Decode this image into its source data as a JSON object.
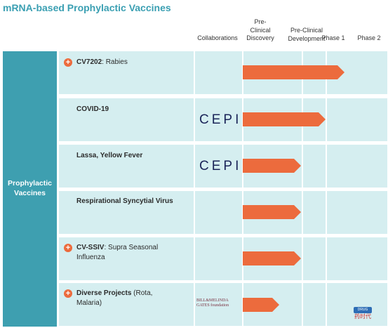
{
  "title": "mRNA-based Prophylactic Vaccines",
  "columns": [
    {
      "key": "collaborations",
      "label": "Collaborations"
    },
    {
      "key": "preclinical_discovery",
      "label": "Pre-\nClinical\nDiscovery"
    },
    {
      "key": "preclinical_development",
      "label": "Pre-Clinical\nDevelopment"
    },
    {
      "key": "phase1",
      "label": "Phase 1"
    },
    {
      "key": "phase2",
      "label": "Phase 2"
    }
  ],
  "category": "Prophylactic\nVaccines",
  "accent_color": "#ec6b3d",
  "programs": [
    {
      "code": "CV7202",
      "separator": ": ",
      "name": "Rabies",
      "plus": true,
      "collaboration": "",
      "stage_reached": "phase1"
    },
    {
      "code": "COVID-19",
      "separator": "",
      "name": "",
      "plus": false,
      "collaboration": "CEPI",
      "stage_reached": "phase1_partial"
    },
    {
      "code": "Lassa, Yellow Fever",
      "separator": "",
      "name": "",
      "plus": false,
      "collaboration": "CEPI",
      "stage_reached": "preclinical_development"
    },
    {
      "code": "Respirational Syncytial Virus",
      "separator": "",
      "name": "",
      "plus": false,
      "collaboration": "",
      "stage_reached": "preclinical_development"
    },
    {
      "code": "CV-SSIV",
      "separator": ": ",
      "name": "Supra Seasonal Influenza",
      "plus": true,
      "collaboration": "",
      "stage_reached": "preclinical_development"
    },
    {
      "code": "Diverse Projects",
      "separator": " ",
      "name": "(Rota, Malaria)",
      "plus": true,
      "collaboration": "BILL&MELINDA GATES foundation",
      "stage_reached": "preclinical_discovery"
    }
  ],
  "watermark": {
    "top": "DRUG TIMES",
    "bottom": "药时代"
  }
}
